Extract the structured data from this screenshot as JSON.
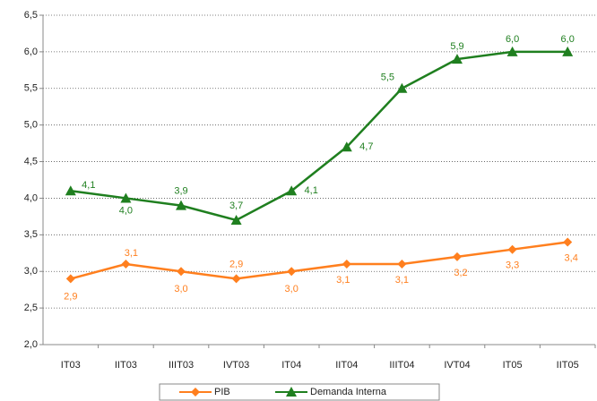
{
  "chart_data": {
    "type": "line",
    "categories": [
      "IT03",
      "IIT03",
      "IIIT03",
      "IVT03",
      "IT04",
      "IIT04",
      "IIIT04",
      "IVT04",
      "IT05",
      "IIT05"
    ],
    "series": [
      {
        "name": "PIB",
        "color": "#ff7f1e",
        "marker": "diamond",
        "values": [
          2.9,
          3.1,
          3.0,
          2.9,
          3.0,
          3.1,
          3.1,
          3.2,
          3.3,
          3.4
        ],
        "value_labels": [
          "2,9",
          "3,1",
          "3,0",
          "2,9",
          "3,0",
          "3,1",
          "3,1",
          "3,2",
          "3,3",
          "3,4"
        ]
      },
      {
        "name": "Demanda Interna",
        "color": "#1f7f1f",
        "marker": "triangle",
        "values": [
          4.1,
          4.0,
          3.9,
          3.7,
          4.1,
          4.7,
          5.5,
          5.9,
          6.0,
          6.0
        ],
        "value_labels": [
          "4,1",
          "4,0",
          "3,9",
          "3,7",
          "4,1",
          "4,7",
          "5,5",
          "5,9",
          "6,0",
          "6,0"
        ]
      }
    ],
    "ylim": [
      2.0,
      6.5
    ],
    "yticks": [
      {
        "value": 2.0,
        "label": "2,0"
      },
      {
        "value": 2.5,
        "label": "2,5"
      },
      {
        "value": 3.0,
        "label": "3,0"
      },
      {
        "value": 3.5,
        "label": "3,5"
      },
      {
        "value": 4.0,
        "label": "4,0"
      },
      {
        "value": 4.5,
        "label": "4,5"
      },
      {
        "value": 5.0,
        "label": "5,0"
      },
      {
        "value": 5.5,
        "label": "5,5"
      },
      {
        "value": 6.0,
        "label": "6,0"
      },
      {
        "value": 6.5,
        "label": "6,5"
      }
    ],
    "grid": true,
    "legend": "bottom"
  }
}
